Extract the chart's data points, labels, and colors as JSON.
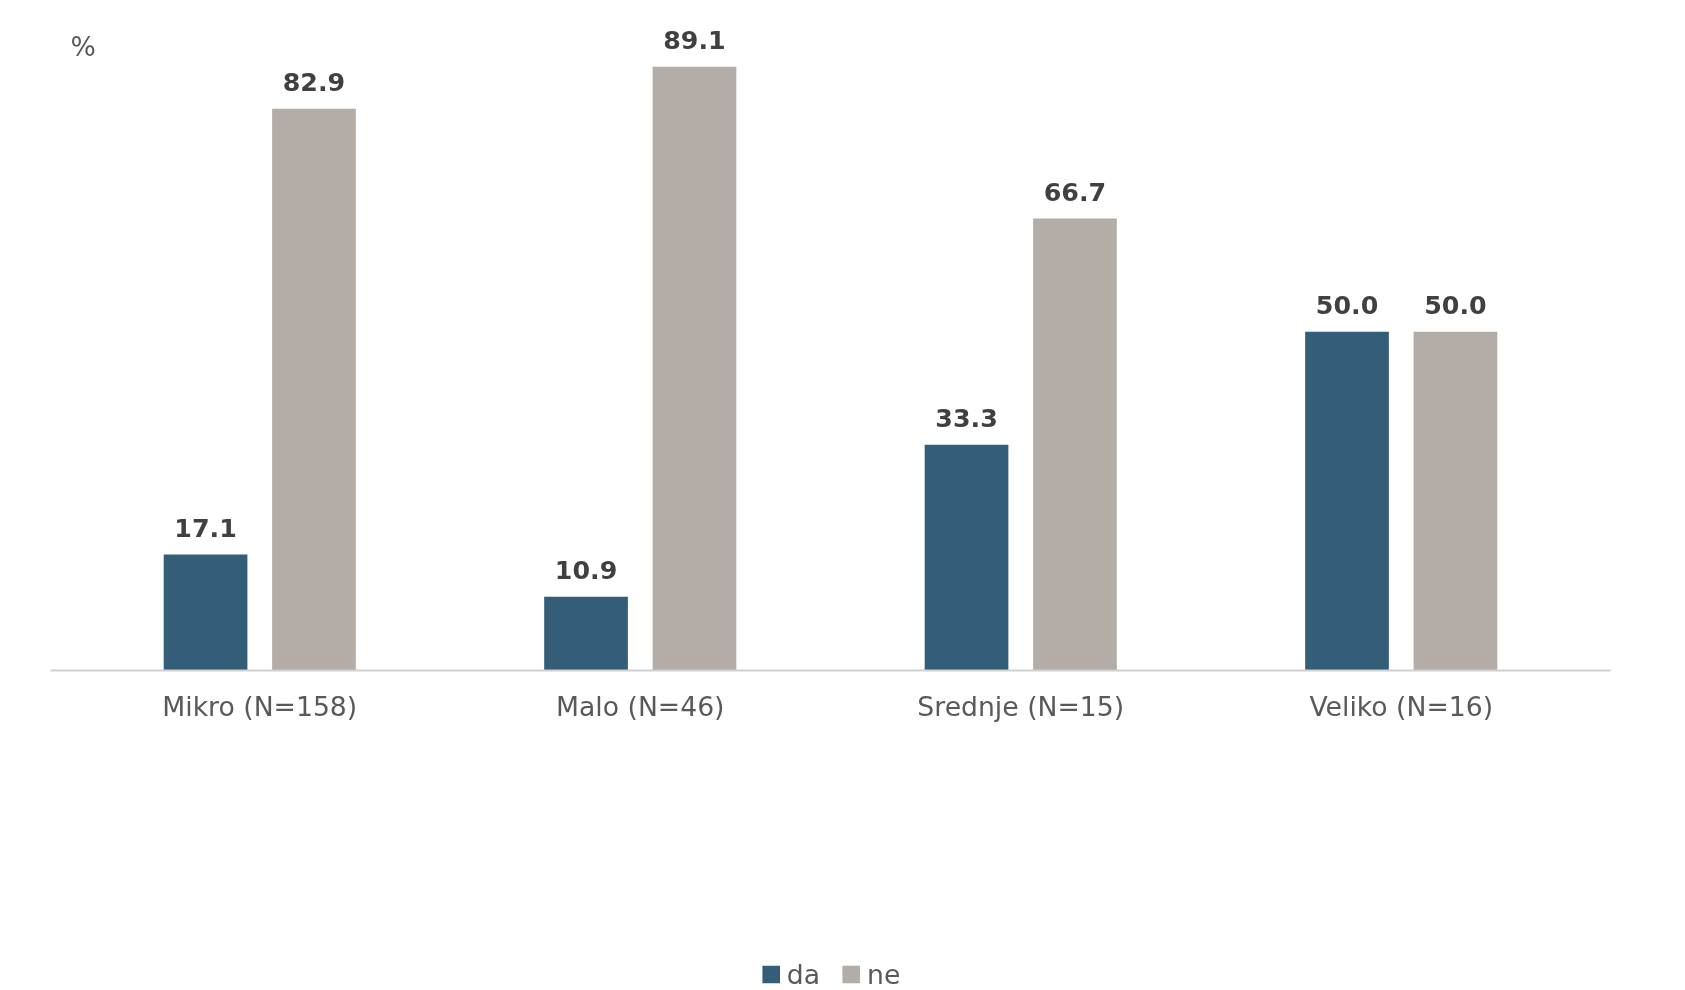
{
  "chart_data": {
    "type": "bar",
    "ylabel": "%",
    "categories": [
      "Mikro (N=158)",
      "Malo (N=46)",
      "Srednje (N=15)",
      "Veliko (N=16)"
    ],
    "series": [
      {
        "name": "da",
        "color": "#345e78",
        "values": [
          17.1,
          10.9,
          33.3,
          50.0
        ],
        "value_labels": [
          "17.1",
          "10.9",
          "33.3",
          "50.0"
        ]
      },
      {
        "name": "ne",
        "color": "#b4aca6",
        "values": [
          82.9,
          89.1,
          66.7,
          50.0
        ],
        "value_labels": [
          "82.9",
          "89.1",
          "66.7",
          "50.0"
        ]
      }
    ],
    "grid": false,
    "legend": "bottom",
    "tick_labels": "x"
  }
}
